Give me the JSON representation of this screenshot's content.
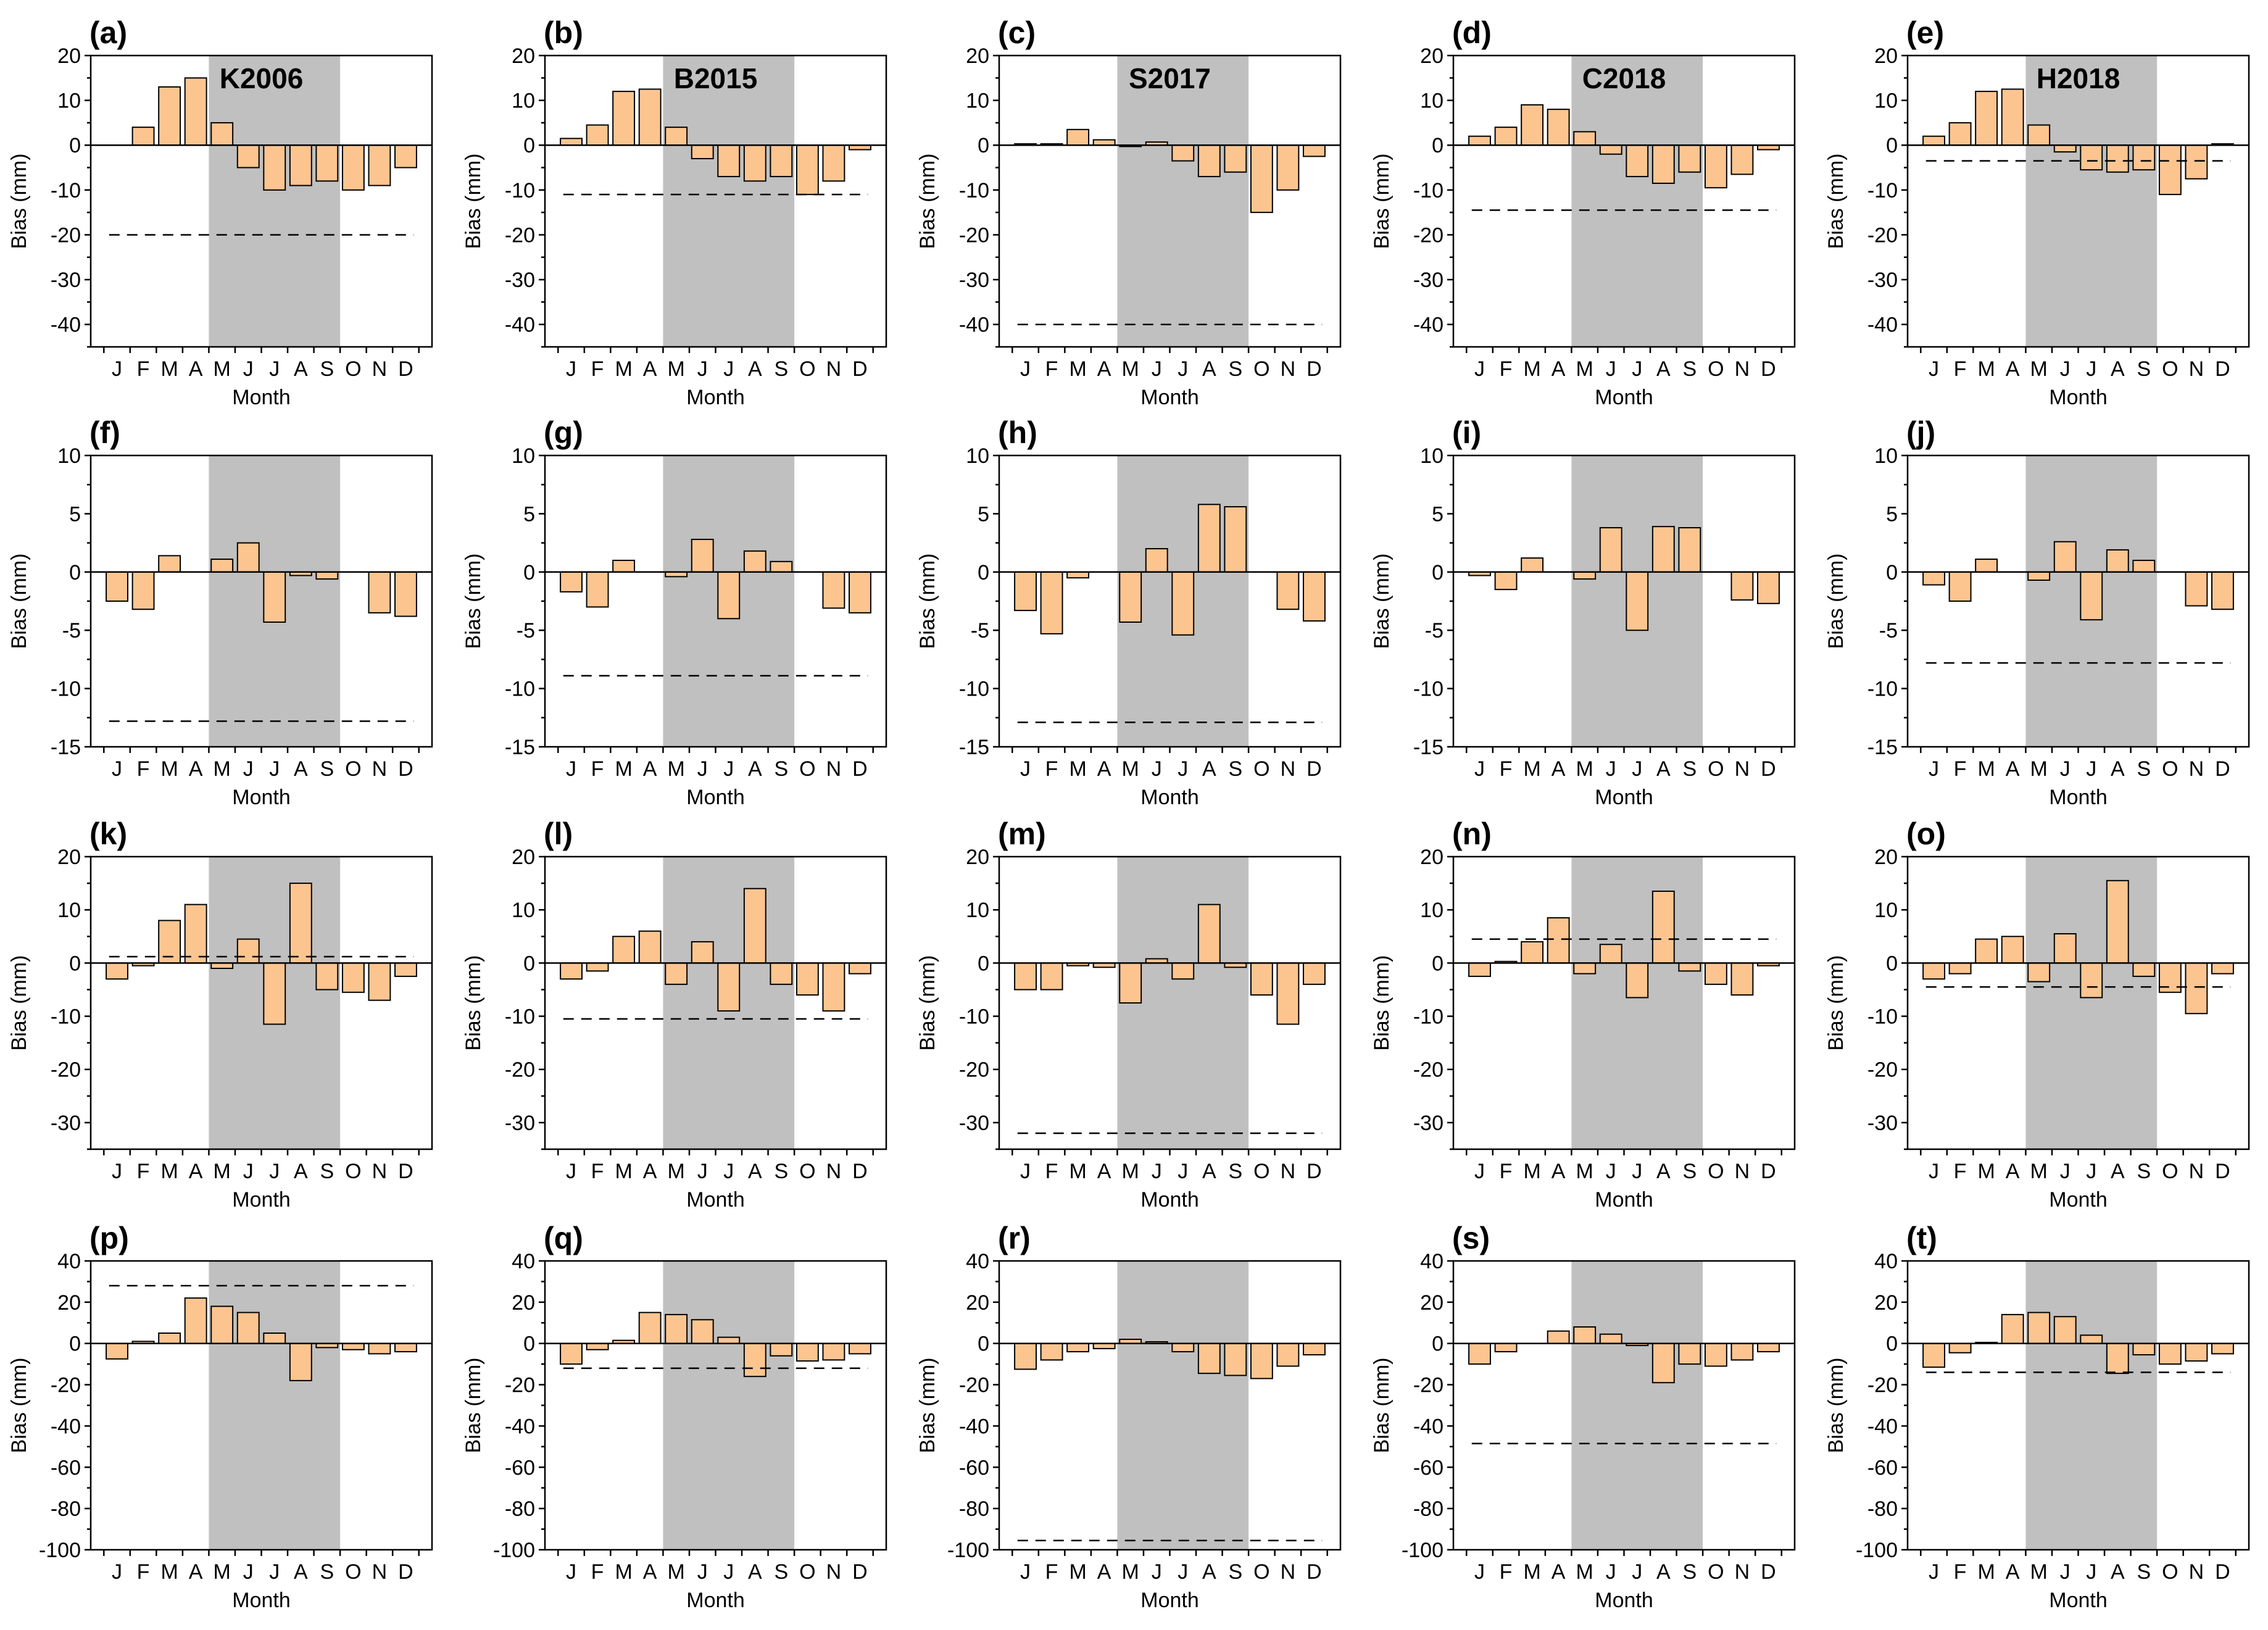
{
  "figure": {
    "xlabel": "Month",
    "ylabel": "Bias (mm)",
    "bar_color": "#fcc590",
    "bar_edge_color": "#000000",
    "shade_color": "#c0c0c0",
    "shade_months": [
      "M",
      "J",
      "J",
      "A",
      "S"
    ],
    "months": [
      "J",
      "F",
      "M",
      "A",
      "M",
      "J",
      "J",
      "A",
      "S",
      "O",
      "N",
      "D"
    ]
  },
  "chart_data": [
    {
      "type": "bar",
      "panel_label": "(a)",
      "model_label": "K2006",
      "categories": [
        "J",
        "F",
        "M",
        "A",
        "M",
        "J",
        "J",
        "A",
        "S",
        "O",
        "N",
        "D"
      ],
      "values": [
        0,
        4,
        13,
        15,
        5,
        -5,
        -10,
        -9,
        -8,
        -10,
        -9,
        -5
      ],
      "reference_line": -20,
      "ylim": [
        -45,
        20
      ],
      "yticks": [
        20,
        10,
        0,
        -10,
        -20,
        -30,
        -40
      ],
      "xlabel": "Month",
      "ylabel": "Bias (mm)"
    },
    {
      "type": "bar",
      "panel_label": "(b)",
      "model_label": "B2015",
      "categories": [
        "J",
        "F",
        "M",
        "A",
        "M",
        "J",
        "J",
        "A",
        "S",
        "O",
        "N",
        "D"
      ],
      "values": [
        1.5,
        4.5,
        12,
        12.5,
        4,
        -3,
        -7,
        -8,
        -7,
        -11,
        -8,
        -1
      ],
      "reference_line": -11,
      "ylim": [
        -45,
        20
      ],
      "yticks": [
        20,
        10,
        0,
        -10,
        -20,
        -30,
        -40
      ],
      "xlabel": "Month",
      "ylabel": "Bias (mm)"
    },
    {
      "type": "bar",
      "panel_label": "(c)",
      "model_label": "S2017",
      "categories": [
        "J",
        "F",
        "M",
        "A",
        "M",
        "J",
        "J",
        "A",
        "S",
        "O",
        "N",
        "D"
      ],
      "values": [
        0.3,
        0.3,
        3.5,
        1.2,
        -0.3,
        0.7,
        -3.5,
        -7,
        -6,
        -15,
        -10,
        -2.5
      ],
      "reference_line": -40,
      "ylim": [
        -45,
        20
      ],
      "yticks": [
        20,
        10,
        0,
        -10,
        -20,
        -30,
        -40
      ],
      "xlabel": "Month",
      "ylabel": "Bias (mm)"
    },
    {
      "type": "bar",
      "panel_label": "(d)",
      "model_label": "C2018",
      "categories": [
        "J",
        "F",
        "M",
        "A",
        "M",
        "J",
        "J",
        "A",
        "S",
        "O",
        "N",
        "D"
      ],
      "values": [
        2,
        4,
        9,
        8,
        3,
        -2,
        -7,
        -8.5,
        -6,
        -9.5,
        -6.5,
        -1
      ],
      "reference_line": -14.5,
      "ylim": [
        -45,
        20
      ],
      "yticks": [
        20,
        10,
        0,
        -10,
        -20,
        -30,
        -40
      ],
      "xlabel": "Month",
      "ylabel": "Bias (mm)"
    },
    {
      "type": "bar",
      "panel_label": "(e)",
      "model_label": "H2018",
      "categories": [
        "J",
        "F",
        "M",
        "A",
        "M",
        "J",
        "J",
        "A",
        "S",
        "O",
        "N",
        "D"
      ],
      "values": [
        2,
        5,
        12,
        12.5,
        4.5,
        -1.5,
        -5.5,
        -6,
        -5.5,
        -11,
        -7.5,
        0.3
      ],
      "reference_line": -3.5,
      "ylim": [
        -45,
        20
      ],
      "yticks": [
        20,
        10,
        0,
        -10,
        -20,
        -30,
        -40
      ],
      "xlabel": "Month",
      "ylabel": "Bias (mm)"
    },
    {
      "type": "bar",
      "panel_label": "(f)",
      "model_label": "",
      "categories": [
        "J",
        "F",
        "M",
        "A",
        "M",
        "J",
        "J",
        "A",
        "S",
        "O",
        "N",
        "D"
      ],
      "values": [
        -2.5,
        -3.2,
        1.4,
        0,
        1.1,
        2.5,
        -4.3,
        -0.3,
        -0.6,
        0,
        -3.5,
        -3.8
      ],
      "reference_line": -12.8,
      "ylim": [
        -15,
        10
      ],
      "yticks": [
        10,
        5,
        0,
        -5,
        -10,
        -15
      ],
      "xlabel": "Month",
      "ylabel": "Bias (mm)"
    },
    {
      "type": "bar",
      "panel_label": "(g)",
      "model_label": "",
      "categories": [
        "J",
        "F",
        "M",
        "A",
        "M",
        "J",
        "J",
        "A",
        "S",
        "O",
        "N",
        "D"
      ],
      "values": [
        -1.7,
        -3,
        1,
        0,
        -0.4,
        2.8,
        -4,
        1.8,
        0.9,
        0,
        -3.1,
        -3.5
      ],
      "reference_line": -8.9,
      "ylim": [
        -15,
        10
      ],
      "yticks": [
        10,
        5,
        0,
        -5,
        -10,
        -15
      ],
      "xlabel": "Month",
      "ylabel": "Bias (mm)"
    },
    {
      "type": "bar",
      "panel_label": "(h)",
      "model_label": "",
      "categories": [
        "J",
        "F",
        "M",
        "A",
        "M",
        "J",
        "J",
        "A",
        "S",
        "O",
        "N",
        "D"
      ],
      "values": [
        -3.3,
        -5.3,
        -0.5,
        0,
        -4.3,
        2,
        -5.4,
        5.8,
        5.6,
        0,
        -3.2,
        -4.2
      ],
      "reference_line": -12.9,
      "ylim": [
        -15,
        10
      ],
      "yticks": [
        10,
        5,
        0,
        -5,
        -10,
        -15
      ],
      "xlabel": "Month",
      "ylabel": "Bias (mm)"
    },
    {
      "type": "bar",
      "panel_label": "(i)",
      "model_label": "",
      "categories": [
        "J",
        "F",
        "M",
        "A",
        "M",
        "J",
        "J",
        "A",
        "S",
        "O",
        "N",
        "D"
      ],
      "values": [
        -0.3,
        -1.5,
        1.2,
        0,
        -0.6,
        3.8,
        -5,
        3.9,
        3.8,
        0,
        -2.4,
        -2.7
      ],
      "reference_line": 0,
      "ylim": [
        -15,
        10
      ],
      "yticks": [
        10,
        5,
        0,
        -5,
        -10,
        -15
      ],
      "xlabel": "Month",
      "ylabel": "Bias (mm)"
    },
    {
      "type": "bar",
      "panel_label": "(j)",
      "model_label": "",
      "categories": [
        "J",
        "F",
        "M",
        "A",
        "M",
        "J",
        "J",
        "A",
        "S",
        "O",
        "N",
        "D"
      ],
      "values": [
        -1.1,
        -2.5,
        1.1,
        0,
        -0.7,
        2.6,
        -4.1,
        1.9,
        1,
        0,
        -2.9,
        -3.2
      ],
      "reference_line": -7.8,
      "ylim": [
        -15,
        10
      ],
      "yticks": [
        10,
        5,
        0,
        -5,
        -10,
        -15
      ],
      "xlabel": "Month",
      "ylabel": "Bias (mm)"
    },
    {
      "type": "bar",
      "panel_label": "(k)",
      "model_label": "",
      "categories": [
        "J",
        "F",
        "M",
        "A",
        "M",
        "J",
        "J",
        "A",
        "S",
        "O",
        "N",
        "D"
      ],
      "values": [
        -3,
        -0.5,
        8,
        11,
        -1,
        4.5,
        -11.5,
        15,
        -5,
        -5.5,
        -7,
        -2.5
      ],
      "reference_line": 1.2,
      "ylim": [
        -35,
        20
      ],
      "yticks": [
        20,
        10,
        0,
        -10,
        -20,
        -30
      ],
      "xlabel": "Month",
      "ylabel": "Bias (mm)"
    },
    {
      "type": "bar",
      "panel_label": "(l)",
      "model_label": "",
      "categories": [
        "J",
        "F",
        "M",
        "A",
        "M",
        "J",
        "J",
        "A",
        "S",
        "O",
        "N",
        "D"
      ],
      "values": [
        -3,
        -1.5,
        5,
        6,
        -4,
        4,
        -9,
        14,
        -4,
        -6,
        -9,
        -2
      ],
      "reference_line": -10.5,
      "ylim": [
        -35,
        20
      ],
      "yticks": [
        20,
        10,
        0,
        -10,
        -20,
        -30
      ],
      "xlabel": "Month",
      "ylabel": "Bias (mm)"
    },
    {
      "type": "bar",
      "panel_label": "(m)",
      "model_label": "",
      "categories": [
        "J",
        "F",
        "M",
        "A",
        "M",
        "J",
        "J",
        "A",
        "S",
        "O",
        "N",
        "D"
      ],
      "values": [
        -5,
        -5,
        -0.5,
        -0.8,
        -7.5,
        0.8,
        -3,
        11,
        -0.8,
        -6,
        -11.5,
        -4
      ],
      "reference_line": -32,
      "ylim": [
        -35,
        20
      ],
      "yticks": [
        20,
        10,
        0,
        -10,
        -20,
        -30
      ],
      "xlabel": "Month",
      "ylabel": "Bias (mm)"
    },
    {
      "type": "bar",
      "panel_label": "(n)",
      "model_label": "",
      "categories": [
        "J",
        "F",
        "M",
        "A",
        "M",
        "J",
        "J",
        "A",
        "S",
        "O",
        "N",
        "D"
      ],
      "values": [
        -2.5,
        0.3,
        4,
        8.5,
        -2,
        3.5,
        -6.5,
        13.5,
        -1.5,
        -4,
        -6,
        -0.5
      ],
      "reference_line": 4.5,
      "ylim": [
        -35,
        20
      ],
      "yticks": [
        20,
        10,
        0,
        -10,
        -20,
        -30
      ],
      "xlabel": "Month",
      "ylabel": "Bias (mm)"
    },
    {
      "type": "bar",
      "panel_label": "(o)",
      "model_label": "",
      "categories": [
        "J",
        "F",
        "M",
        "A",
        "M",
        "J",
        "J",
        "A",
        "S",
        "O",
        "N",
        "D"
      ],
      "values": [
        -3,
        -2,
        4.5,
        5,
        -3.5,
        5.5,
        -6.5,
        15.5,
        -2.5,
        -5.5,
        -9.5,
        -2
      ],
      "reference_line": -4.5,
      "ylim": [
        -35,
        20
      ],
      "yticks": [
        20,
        10,
        0,
        -10,
        -20,
        -30
      ],
      "xlabel": "Month",
      "ylabel": "Bias (mm)"
    },
    {
      "type": "bar",
      "panel_label": "(p)",
      "model_label": "",
      "categories": [
        "J",
        "F",
        "M",
        "A",
        "M",
        "J",
        "J",
        "A",
        "S",
        "O",
        "N",
        "D"
      ],
      "values": [
        -7.5,
        1,
        5,
        22,
        18,
        15,
        5,
        -18,
        -2,
        -3,
        -5,
        -4
      ],
      "reference_line": 28,
      "ylim": [
        -100,
        40
      ],
      "yticks": [
        40,
        20,
        0,
        -20,
        -40,
        -60,
        -80,
        -100
      ],
      "xlabel": "Month",
      "ylabel": "Bias (mm)"
    },
    {
      "type": "bar",
      "panel_label": "(q)",
      "model_label": "",
      "categories": [
        "J",
        "F",
        "M",
        "A",
        "M",
        "J",
        "J",
        "A",
        "S",
        "O",
        "N",
        "D"
      ],
      "values": [
        -10,
        -3,
        1.5,
        15,
        14,
        11.5,
        3,
        -16,
        -6,
        -8.5,
        -8,
        -5
      ],
      "reference_line": -12,
      "ylim": [
        -100,
        40
      ],
      "yticks": [
        40,
        20,
        0,
        -20,
        -40,
        -60,
        -80,
        -100
      ],
      "xlabel": "Month",
      "ylabel": "Bias (mm)"
    },
    {
      "type": "bar",
      "panel_label": "(r)",
      "model_label": "",
      "categories": [
        "J",
        "F",
        "M",
        "A",
        "M",
        "J",
        "J",
        "A",
        "S",
        "O",
        "N",
        "D"
      ],
      "values": [
        -12.5,
        -8,
        -4,
        -2.5,
        2,
        0.8,
        -4,
        -14.5,
        -15.5,
        -17,
        -11,
        -5.5
      ],
      "reference_line": -95.5,
      "ylim": [
        -100,
        40
      ],
      "yticks": [
        40,
        20,
        0,
        -20,
        -40,
        -60,
        -80,
        -100
      ],
      "xlabel": "Month",
      "ylabel": "Bias (mm)"
    },
    {
      "type": "bar",
      "panel_label": "(s)",
      "model_label": "",
      "categories": [
        "J",
        "F",
        "M",
        "A",
        "M",
        "J",
        "J",
        "A",
        "S",
        "O",
        "N",
        "D"
      ],
      "values": [
        -10,
        -4,
        0,
        6,
        8,
        4.5,
        -1,
        -19,
        -10,
        -11,
        -8,
        -4
      ],
      "reference_line": -48.5,
      "ylim": [
        -100,
        40
      ],
      "yticks": [
        40,
        20,
        0,
        -20,
        -40,
        -60,
        -80,
        -100
      ],
      "xlabel": "Month",
      "ylabel": "Bias (mm)"
    },
    {
      "type": "bar",
      "panel_label": "(t)",
      "model_label": "",
      "categories": [
        "J",
        "F",
        "M",
        "A",
        "M",
        "J",
        "J",
        "A",
        "S",
        "O",
        "N",
        "D"
      ],
      "values": [
        -11.5,
        -4.5,
        0.5,
        14,
        15,
        13,
        4,
        -14.5,
        -5.5,
        -10,
        -8.5,
        -5
      ],
      "reference_line": -14,
      "ylim": [
        -100,
        40
      ],
      "yticks": [
        40,
        20,
        0,
        -20,
        -40,
        -60,
        -80,
        -100
      ],
      "xlabel": "Month",
      "ylabel": "Bias (mm)"
    }
  ]
}
